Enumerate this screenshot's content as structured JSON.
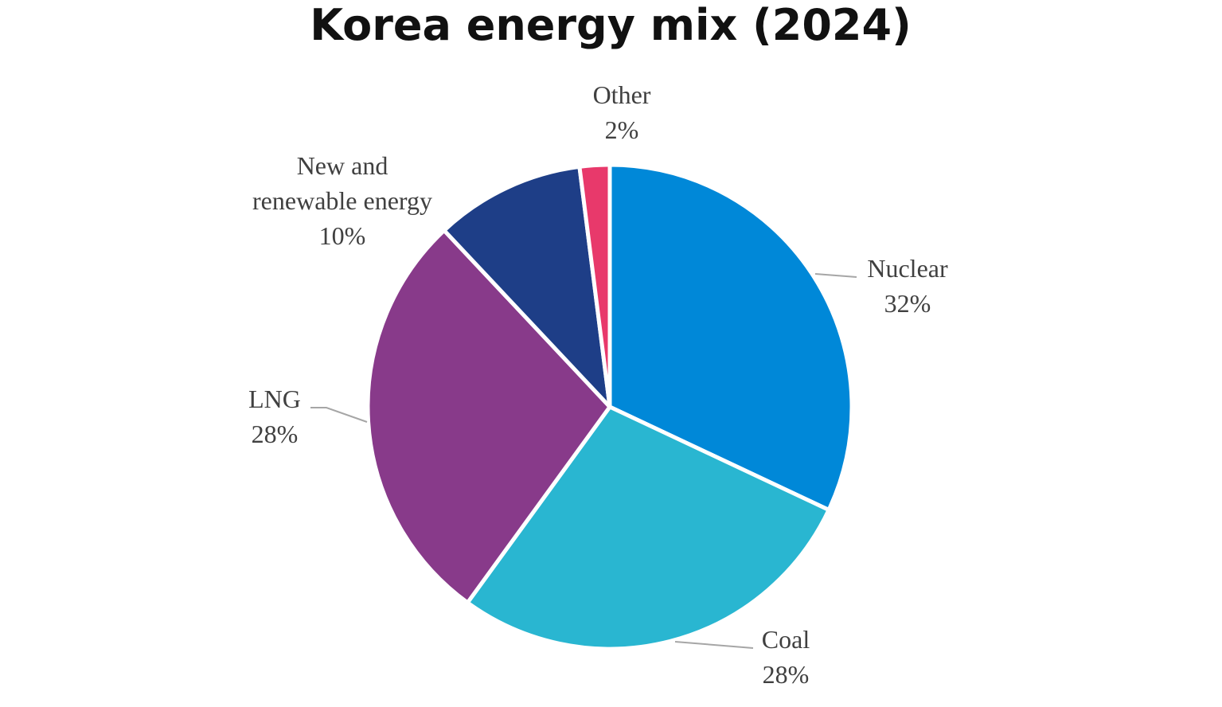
{
  "chart_data": {
    "type": "pie",
    "title": "Korea energy mix (2024)",
    "start_angle_deg": 0,
    "direction": "clockwise",
    "slices": [
      {
        "name": "Nuclear",
        "value": 32,
        "value_label": "32%",
        "color": "#0088d8",
        "label_lines": [
          "Nuclear"
        ]
      },
      {
        "name": "Coal",
        "value": 28,
        "value_label": "28%",
        "color": "#29b6d1",
        "label_lines": [
          "Coal"
        ]
      },
      {
        "name": "LNG",
        "value": 28,
        "value_label": "28%",
        "color": "#883a8a",
        "label_lines": [
          "LNG"
        ]
      },
      {
        "name": "New and renewable energy",
        "value": 10,
        "value_label": "10%",
        "color": "#1e3e87",
        "label_lines": [
          "New and",
          "renewable energy"
        ]
      },
      {
        "name": "Other",
        "value": 2,
        "value_label": "2%",
        "color": "#e8396b",
        "label_lines": [
          "Other"
        ]
      }
    ]
  }
}
